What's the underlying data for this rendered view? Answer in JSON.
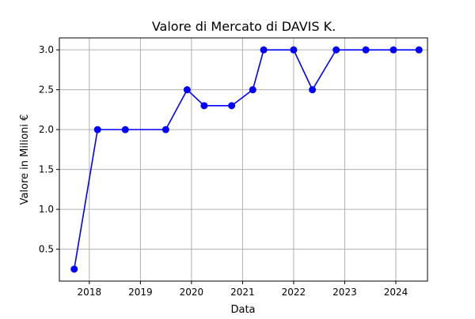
{
  "chart_data": {
    "type": "line",
    "title": "Valore di Mercato di DAVIS K.",
    "xlabel": "Data",
    "ylabel": "Valore in Milioni €",
    "x_ticks": [
      "2018",
      "2019",
      "2020",
      "2021",
      "2022",
      "2023",
      "2024"
    ],
    "y_ticks": [
      "0.5",
      "1.0",
      "1.5",
      "2.0",
      "2.5",
      "3.0"
    ],
    "xlim": [
      "2017-06-01",
      "2024-08-15"
    ],
    "ylim": [
      0.1,
      3.15
    ],
    "grid": true,
    "series": [
      {
        "color": "#0000ff",
        "marker": "circle",
        "x": [
          "2017-09-15",
          "2018-03-01",
          "2018-09-15",
          "2019-07-01",
          "2019-12-01",
          "2020-04-01",
          "2020-10-15",
          "2021-03-15",
          "2021-06-01",
          "2022-01-01",
          "2022-05-15",
          "2022-11-01",
          "2023-06-01",
          "2023-12-15",
          "2024-06-15"
        ],
        "values": [
          0.25,
          2.0,
          2.0,
          2.0,
          2.5,
          2.3,
          2.3,
          2.5,
          3.0,
          3.0,
          2.5,
          3.0,
          3.0,
          3.0,
          3.0
        ]
      }
    ]
  }
}
